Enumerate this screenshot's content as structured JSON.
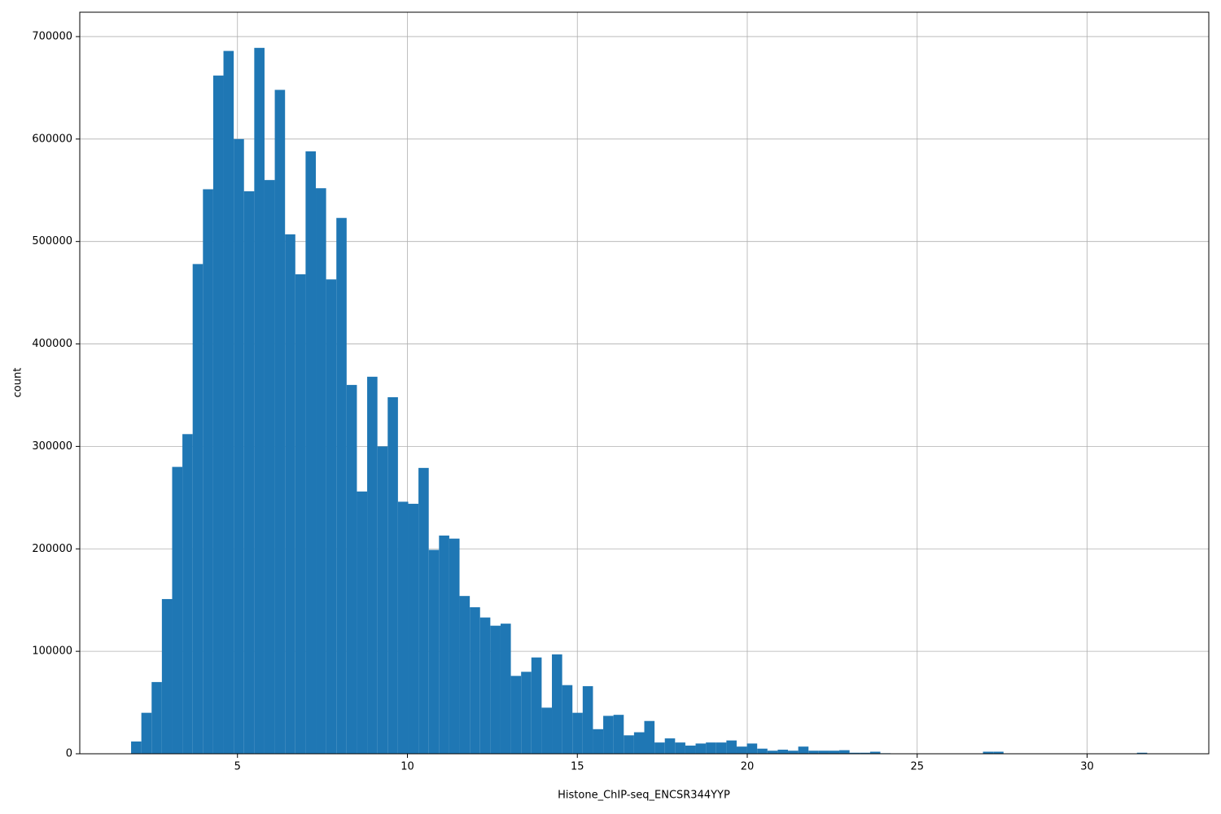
{
  "chart_data": {
    "type": "histogram",
    "x_label": "Histone_ChIP-seq_ENCSR344YYP",
    "y_label": "count",
    "color": "#1f77b4",
    "grid": true,
    "bins": [
      1.87,
      2.172,
      2.474,
      2.776,
      3.078,
      3.38,
      3.682,
      3.984,
      4.286,
      4.588,
      4.89,
      5.192,
      5.494,
      5.796,
      6.098,
      6.4,
      6.702,
      7.004,
      7.306,
      7.608,
      7.91,
      8.212,
      8.514,
      8.816,
      9.118,
      9.42,
      9.722,
      10.024,
      10.326,
      10.628,
      10.93,
      11.232,
      11.534,
      11.836,
      12.138,
      12.44,
      12.742,
      13.044,
      13.346,
      13.648,
      13.95,
      14.252,
      14.554,
      14.856,
      15.158,
      15.46,
      15.762,
      16.064,
      16.366,
      16.668,
      16.97,
      17.272,
      17.574,
      17.876,
      18.178,
      18.48,
      18.782,
      19.084,
      19.386,
      19.688,
      19.99,
      20.292,
      20.594,
      20.896,
      21.198,
      21.5,
      21.802,
      22.104,
      22.406,
      22.708,
      23.01,
      23.312,
      23.614,
      23.916,
      24.218,
      24.52,
      24.822,
      25.124,
      25.426,
      25.728,
      26.03,
      26.332,
      26.634,
      26.936,
      27.238,
      27.54,
      27.842,
      28.144,
      28.446,
      28.748,
      29.05,
      29.352,
      29.654,
      29.956,
      30.258,
      30.56,
      30.862,
      31.164,
      31.466,
      31.768,
      32.07
    ],
    "counts": [
      12000,
      40000,
      70000,
      151000,
      280000,
      312000,
      478000,
      551000,
      662000,
      686000,
      600000,
      549000,
      689000,
      560000,
      648000,
      507000,
      468000,
      588000,
      552000,
      463000,
      523000,
      360000,
      256000,
      368000,
      300000,
      348000,
      246000,
      244000,
      279000,
      199000,
      213000,
      210000,
      154000,
      143000,
      133000,
      125000,
      127000,
      76000,
      80000,
      94000,
      45000,
      97000,
      67000,
      40000,
      66000,
      24000,
      37000,
      38000,
      18000,
      21000,
      32000,
      11000,
      15000,
      11000,
      8000,
      10000,
      11000,
      11000,
      13000,
      7000,
      10000,
      5000,
      3000,
      4000,
      3000,
      7000,
      3000,
      3000,
      3000,
      3500,
      1000,
      1000,
      2000,
      500,
      0,
      0,
      0,
      0,
      0,
      0,
      0,
      0,
      0,
      2000,
      2000,
      0,
      0,
      0,
      0,
      0,
      0,
      0,
      0,
      0,
      0,
      0,
      0,
      0,
      1000,
      0
    ],
    "xlim": [
      0.36,
      33.58
    ],
    "ylim": [
      0,
      723800
    ],
    "xticks": [
      5,
      10,
      15,
      20,
      25,
      30
    ],
    "yticks": [
      0,
      100000,
      200000,
      300000,
      400000,
      500000,
      600000,
      700000
    ]
  }
}
